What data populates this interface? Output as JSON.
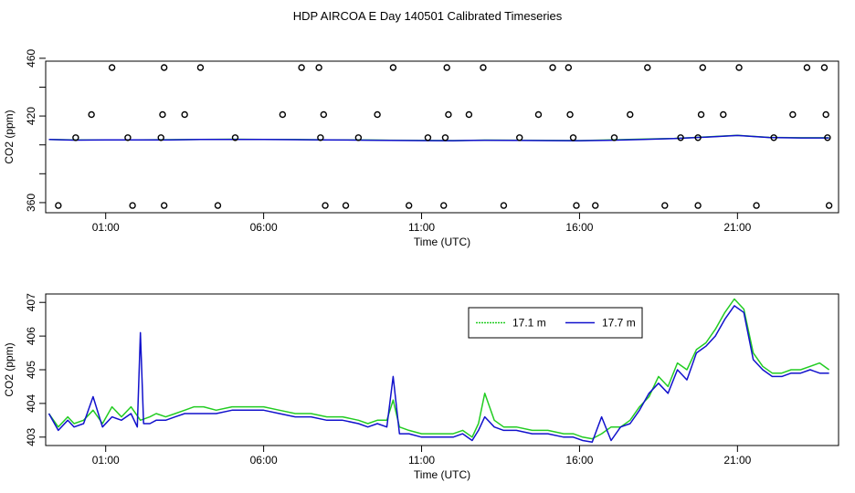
{
  "title": "HDP AIRCOA E  Day 140501  Calibrated Timeseries",
  "colors": {
    "series_1": "#22cc22",
    "series_2": "#1111cc",
    "axis": "#000000",
    "background": "#ffffff"
  },
  "chart_data": [
    {
      "type": "scatter",
      "xlabel": "Time (UTC)",
      "ylabel": "CO2 (ppm)",
      "xlim": [
        -0.9,
        24.2
      ],
      "ylim": [
        353,
        458
      ],
      "grid": false,
      "x_ticks": [
        1,
        6,
        11,
        16,
        21
      ],
      "x_tick_labels": [
        "01:00",
        "06:00",
        "11:00",
        "16:00",
        "21:00"
      ],
      "y_ticks": [
        360,
        380,
        400,
        420,
        440,
        460
      ],
      "y_tick_labels": [
        "360",
        "",
        "",
        "420",
        "",
        "460"
      ],
      "flag_points": [
        [
          -0.5,
          358
        ],
        [
          0.05,
          405
        ],
        [
          0.55,
          421
        ],
        [
          1.2,
          469
        ],
        [
          1.7,
          405
        ],
        [
          1.85,
          358
        ],
        [
          2.75,
          405
        ],
        [
          2.8,
          421
        ],
        [
          2.85,
          358
        ],
        [
          2.85,
          469
        ],
        [
          3.5,
          421
        ],
        [
          4.0,
          469
        ],
        [
          4.55,
          358
        ],
        [
          5.1,
          405
        ],
        [
          6.6,
          421
        ],
        [
          7.2,
          469
        ],
        [
          7.8,
          405
        ],
        [
          7.9,
          421
        ],
        [
          7.95,
          358
        ],
        [
          7.75,
          469
        ],
        [
          8.6,
          358
        ],
        [
          9.0,
          405
        ],
        [
          9.6,
          421
        ],
        [
          10.1,
          469
        ],
        [
          10.6,
          358
        ],
        [
          11.2,
          405
        ],
        [
          11.75,
          405
        ],
        [
          11.7,
          358
        ],
        [
          11.85,
          421
        ],
        [
          11.8,
          469
        ],
        [
          12.5,
          421
        ],
        [
          12.95,
          469
        ],
        [
          13.6,
          358
        ],
        [
          14.1,
          405
        ],
        [
          14.7,
          421
        ],
        [
          15.15,
          469
        ],
        [
          15.65,
          469
        ],
        [
          15.7,
          421
        ],
        [
          15.8,
          405
        ],
        [
          15.9,
          358
        ],
        [
          16.5,
          358
        ],
        [
          17.1,
          405
        ],
        [
          17.6,
          421
        ],
        [
          18.15,
          469
        ],
        [
          18.7,
          358
        ],
        [
          19.2,
          405
        ],
        [
          19.75,
          405
        ],
        [
          19.75,
          358
        ],
        [
          19.85,
          421
        ],
        [
          19.9,
          469
        ],
        [
          20.55,
          421
        ],
        [
          21.05,
          469
        ],
        [
          21.6,
          358
        ],
        [
          22.15,
          405
        ],
        [
          22.75,
          421
        ],
        [
          23.2,
          469
        ],
        [
          23.75,
          469
        ],
        [
          23.8,
          421
        ],
        [
          23.85,
          405
        ],
        [
          23.9,
          358
        ]
      ],
      "series": [
        {
          "name": "17.1 m",
          "color": "#22cc22",
          "x": [
            -0.8,
            0,
            1,
            2,
            3,
            4,
            5,
            6,
            7,
            8,
            9,
            10,
            11,
            12,
            13,
            14,
            15,
            16,
            17,
            18,
            19,
            20,
            21,
            22,
            23,
            23.9
          ],
          "values": [
            403.7,
            403.4,
            403.5,
            403.5,
            403.6,
            403.8,
            403.9,
            403.8,
            403.7,
            403.5,
            403.4,
            403.2,
            403.1,
            403.0,
            403.3,
            403.2,
            403.1,
            403.0,
            403.4,
            404.0,
            404.5,
            405.5,
            406.6,
            405.2,
            404.9,
            404.9
          ]
        },
        {
          "name": "17.7 m",
          "color": "#1111cc",
          "x": [
            -0.8,
            0,
            1,
            2,
            3,
            4,
            5,
            6,
            7,
            8,
            9,
            10,
            11,
            12,
            13,
            14,
            15,
            16,
            17,
            18,
            19,
            20,
            21,
            22,
            23,
            23.9
          ],
          "values": [
            403.7,
            403.3,
            403.4,
            403.4,
            403.5,
            403.7,
            403.8,
            403.7,
            403.6,
            403.5,
            403.3,
            403.1,
            403.0,
            402.9,
            403.2,
            403.1,
            403.0,
            402.9,
            403.2,
            403.8,
            404.4,
            405.4,
            406.5,
            405.1,
            404.8,
            404.8
          ]
        }
      ]
    },
    {
      "type": "line",
      "xlabel": "Time (UTC)",
      "ylabel": "CO2 (ppm)",
      "xlim": [
        -0.9,
        24.2
      ],
      "ylim": [
        402.75,
        407.25
      ],
      "grid": false,
      "legend_position": "top-right",
      "x_ticks": [
        1,
        6,
        11,
        16,
        21
      ],
      "x_tick_labels": [
        "01:00",
        "06:00",
        "11:00",
        "16:00",
        "21:00"
      ],
      "y_ticks": [
        403,
        404,
        405,
        406,
        407
      ],
      "y_tick_labels": [
        "403",
        "404",
        "405",
        "406",
        "407"
      ],
      "series": [
        {
          "name": "17.1 m",
          "color": "#22cc22",
          "x": [
            -0.8,
            -0.5,
            -0.2,
            0.0,
            0.3,
            0.6,
            0.9,
            1.2,
            1.5,
            1.8,
            2.1,
            2.4,
            2.6,
            2.9,
            3.2,
            3.5,
            3.8,
            4.1,
            4.5,
            5.0,
            5.5,
            6.0,
            6.5,
            7.0,
            7.5,
            8.0,
            8.5,
            9.0,
            9.3,
            9.6,
            9.9,
            10.1,
            10.3,
            10.6,
            11.0,
            11.5,
            12.0,
            12.3,
            12.6,
            12.8,
            13.0,
            13.3,
            13.6,
            14.0,
            14.5,
            15.0,
            15.5,
            15.8,
            16.1,
            16.4,
            16.7,
            17.0,
            17.3,
            17.6,
            17.9,
            18.2,
            18.5,
            18.8,
            19.1,
            19.4,
            19.7,
            20.0,
            20.3,
            20.6,
            20.9,
            21.2,
            21.5,
            21.8,
            22.1,
            22.4,
            22.7,
            23.0,
            23.3,
            23.6,
            23.9
          ],
          "values": [
            403.7,
            403.3,
            403.6,
            403.4,
            403.5,
            403.8,
            403.4,
            403.9,
            403.6,
            403.9,
            403.5,
            403.6,
            403.7,
            403.6,
            403.7,
            403.8,
            403.9,
            403.9,
            403.8,
            403.9,
            403.9,
            403.9,
            403.8,
            403.7,
            403.7,
            403.6,
            403.6,
            403.5,
            403.4,
            403.5,
            403.5,
            404.1,
            403.3,
            403.2,
            403.1,
            403.1,
            403.1,
            403.2,
            403.0,
            403.4,
            404.3,
            403.5,
            403.3,
            403.3,
            403.2,
            403.2,
            403.1,
            403.1,
            403.0,
            402.95,
            403.1,
            403.3,
            403.3,
            403.5,
            403.9,
            404.2,
            404.8,
            404.5,
            405.2,
            405.0,
            405.6,
            405.8,
            406.2,
            406.7,
            407.1,
            406.8,
            405.5,
            405.1,
            404.9,
            404.9,
            405.0,
            405.0,
            405.1,
            405.2,
            405.0
          ]
        },
        {
          "name": "17.7 m",
          "color": "#1111cc",
          "x": [
            -0.8,
            -0.5,
            -0.2,
            0.0,
            0.3,
            0.6,
            0.9,
            1.2,
            1.5,
            1.8,
            2.0,
            2.1,
            2.2,
            2.4,
            2.6,
            2.9,
            3.2,
            3.5,
            3.8,
            4.1,
            4.5,
            5.0,
            5.5,
            6.0,
            6.5,
            7.0,
            7.5,
            8.0,
            8.5,
            9.0,
            9.3,
            9.6,
            9.9,
            10.1,
            10.3,
            10.6,
            11.0,
            11.5,
            12.0,
            12.3,
            12.6,
            12.8,
            13.0,
            13.3,
            13.6,
            14.0,
            14.5,
            15.0,
            15.5,
            15.8,
            16.1,
            16.4,
            16.7,
            17.0,
            17.3,
            17.6,
            17.9,
            18.2,
            18.5,
            18.8,
            19.1,
            19.4,
            19.7,
            20.0,
            20.3,
            20.6,
            20.9,
            21.2,
            21.5,
            21.8,
            22.1,
            22.4,
            22.7,
            23.0,
            23.3,
            23.6,
            23.9
          ],
          "values": [
            403.7,
            403.2,
            403.5,
            403.3,
            403.4,
            404.2,
            403.3,
            403.6,
            403.5,
            403.7,
            403.3,
            406.1,
            403.4,
            403.4,
            403.5,
            403.5,
            403.6,
            403.7,
            403.7,
            403.7,
            403.7,
            403.8,
            403.8,
            403.8,
            403.7,
            403.6,
            403.6,
            403.5,
            403.5,
            403.4,
            403.3,
            403.4,
            403.3,
            404.8,
            403.1,
            403.1,
            403.0,
            403.0,
            403.0,
            403.1,
            402.9,
            403.2,
            403.6,
            403.3,
            403.2,
            403.2,
            403.1,
            403.1,
            403.0,
            403.0,
            402.9,
            402.85,
            403.6,
            402.9,
            403.3,
            403.4,
            403.8,
            404.3,
            404.6,
            404.3,
            405.0,
            404.7,
            405.5,
            405.7,
            406.0,
            406.5,
            406.9,
            406.7,
            405.3,
            405.0,
            404.8,
            404.8,
            404.9,
            404.9,
            405.0,
            404.9,
            404.9
          ]
        }
      ]
    }
  ]
}
